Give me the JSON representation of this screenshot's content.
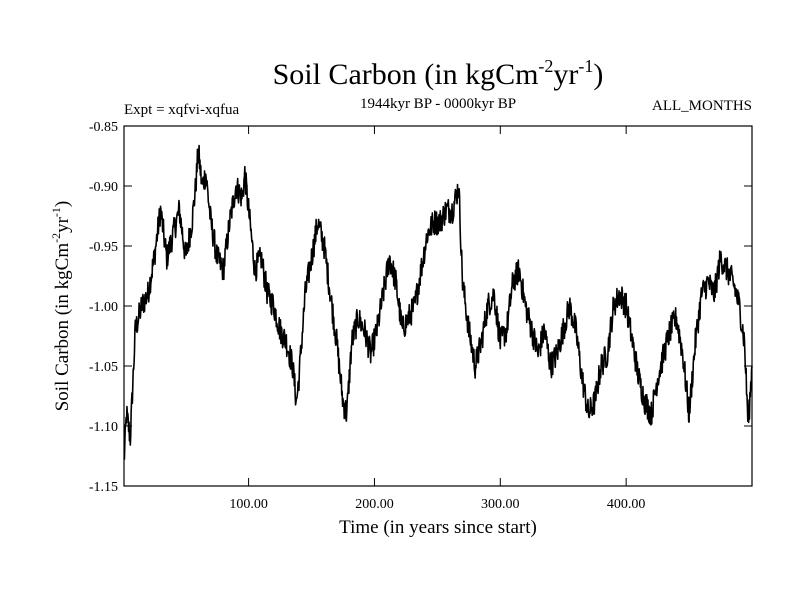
{
  "chart_data": {
    "type": "line",
    "title": "Soil Carbon (in kgCm",
    "title_sup1": "-2",
    "title_mid": "yr",
    "title_sup2": "-1",
    "title_end": ")",
    "subtitle_left": "Expt = xqfvi-xqfua",
    "subtitle_center": "1944kyr BP - 0000kyr BP",
    "subtitle_right": "ALL_MONTHS",
    "xlabel": "Time (in years since start)",
    "ylabel": "Soil Carbon (in kgCm",
    "ylabel_sup1": "-2",
    "ylabel_mid": "yr",
    "ylabel_sup2": "-1",
    "ylabel_end": ")",
    "xlim": [
      1,
      500
    ],
    "ylim": [
      -1.15,
      -0.85
    ],
    "xticks": [
      100,
      200,
      300,
      400
    ],
    "xtick_labels": [
      "100.00",
      "200.00",
      "300.00",
      "400.00"
    ],
    "yticks": [
      -0.85,
      -0.9,
      -0.95,
      -1.0,
      -1.05,
      -1.1,
      -1.15
    ],
    "ytick_labels": [
      "-0.85",
      "-0.90",
      "-0.95",
      "-1.00",
      "-1.05",
      "-1.10",
      "-1.15"
    ],
    "series": [
      {
        "name": "Soil Carbon",
        "x": [
          1,
          3,
          6,
          10,
          15,
          20,
          25,
          30,
          35,
          40,
          45,
          50,
          55,
          58,
          60,
          63,
          66,
          70,
          75,
          80,
          85,
          90,
          95,
          97,
          100,
          105,
          110,
          115,
          120,
          125,
          130,
          135,
          138,
          140,
          145,
          150,
          155,
          160,
          165,
          170,
          175,
          178,
          182,
          187,
          192,
          197,
          202,
          207,
          212,
          217,
          222,
          227,
          232,
          237,
          242,
          247,
          252,
          257,
          262,
          267,
          270,
          275,
          280,
          285,
          290,
          295,
          300,
          305,
          310,
          315,
          320,
          325,
          330,
          335,
          340,
          345,
          350,
          355,
          360,
          365,
          370,
          375,
          380,
          385,
          390,
          395,
          400,
          405,
          410,
          415,
          420,
          425,
          430,
          435,
          440,
          445,
          450,
          455,
          460,
          465,
          470,
          475,
          480,
          485,
          490,
          494,
          497,
          500
        ],
        "y": [
          -1.13,
          -1.09,
          -1.11,
          -1.02,
          -1.0,
          -0.99,
          -0.96,
          -0.92,
          -0.96,
          -0.94,
          -0.92,
          -0.96,
          -0.93,
          -0.9,
          -0.87,
          -0.9,
          -0.89,
          -0.93,
          -0.96,
          -0.97,
          -0.93,
          -0.9,
          -0.91,
          -0.89,
          -0.92,
          -0.97,
          -0.96,
          -0.99,
          -1.0,
          -1.02,
          -1.03,
          -1.05,
          -1.08,
          -1.06,
          -0.99,
          -0.96,
          -0.93,
          -0.95,
          -0.99,
          -1.03,
          -1.08,
          -1.09,
          -1.03,
          -1.01,
          -1.02,
          -1.04,
          -1.02,
          -0.99,
          -0.96,
          -0.98,
          -1.02,
          -1.01,
          -1.0,
          -0.97,
          -0.94,
          -0.93,
          -0.93,
          -0.92,
          -0.92,
          -0.9,
          -0.98,
          -1.02,
          -1.05,
          -1.03,
          -1.0,
          -0.99,
          -1.03,
          -1.02,
          -0.98,
          -0.97,
          -1.0,
          -1.02,
          -1.04,
          -1.02,
          -1.05,
          -1.04,
          -1.02,
          -1.0,
          -1.02,
          -1.06,
          -1.09,
          -1.08,
          -1.05,
          -1.04,
          -1.0,
          -0.99,
          -1.0,
          -1.03,
          -1.06,
          -1.08,
          -1.09,
          -1.06,
          -1.04,
          -1.02,
          -1.01,
          -1.04,
          -1.09,
          -1.03,
          -0.99,
          -0.98,
          -0.99,
          -0.96,
          -0.97,
          -0.98,
          -1.0,
          -1.03,
          -1.1,
          -1.05
        ]
      }
    ]
  }
}
